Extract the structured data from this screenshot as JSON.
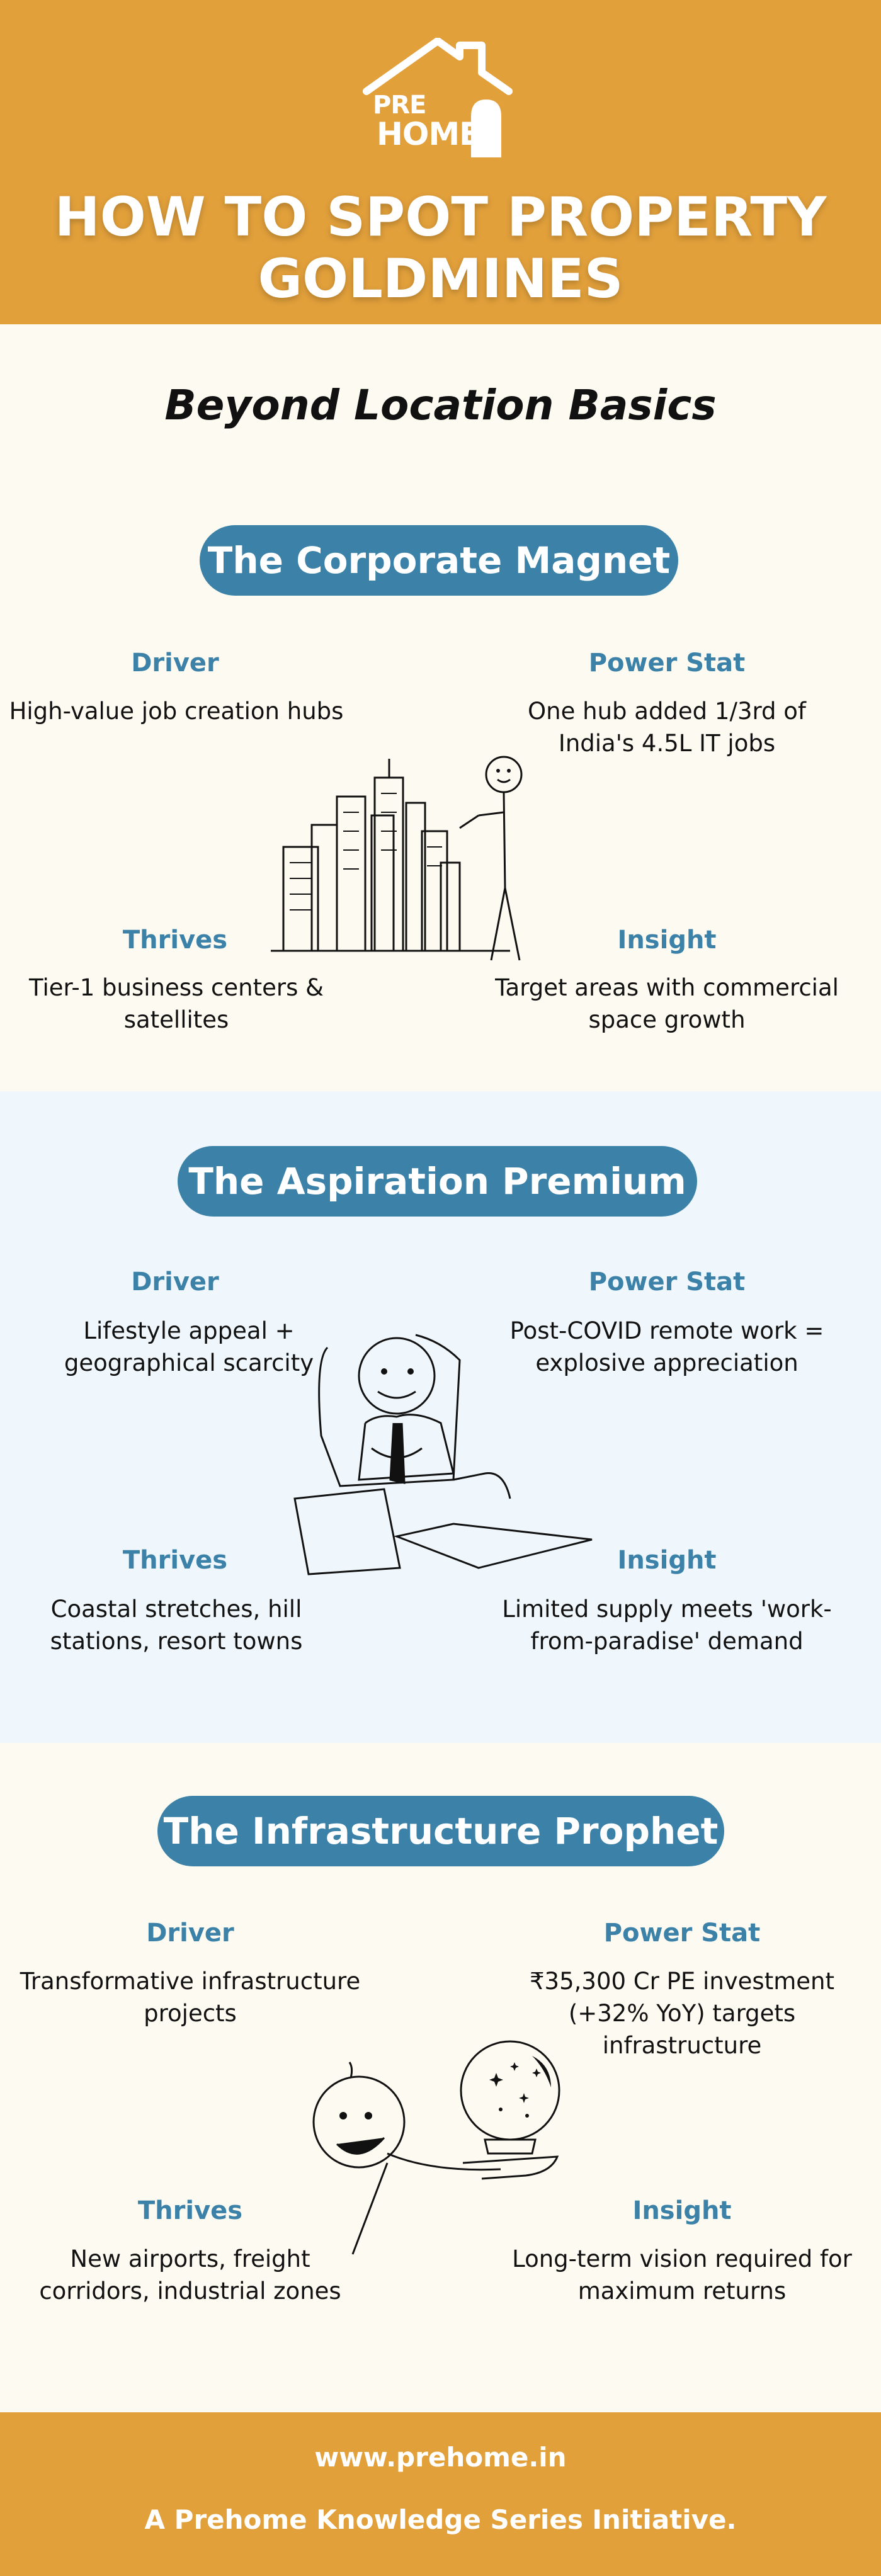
{
  "brand": {
    "logo_top": "PRE",
    "logo_bottom": "HOME"
  },
  "title": "HOW TO SPOT PROPERTY GOLDMINES",
  "subtitle": "Beyond Location Basics",
  "sections": [
    {
      "title": "The Corporate Magnet",
      "driver_label": "Driver",
      "driver": "High-value job creation hubs",
      "power_label": "Power Stat",
      "power": "One hub added 1/3rd of India's 4.5L IT jobs",
      "thrives_label": "Thrives",
      "thrives": "Tier-1 business centers & satellites",
      "insight_label": "Insight",
      "insight": "Target areas with commercial space growth"
    },
    {
      "title": "The Aspiration Premium",
      "driver_label": "Driver",
      "driver": "Lifestyle appeal + geographical scarcity",
      "power_label": "Power Stat",
      "power": "Post-COVID remote work = explosive appreciation",
      "thrives_label": "Thrives",
      "thrives": "Coastal stretches, hill stations, resort towns",
      "insight_label": "Insight",
      "insight": "Limited supply meets 'work-from-paradise' demand"
    },
    {
      "title": "The Infrastructure Prophet",
      "driver_label": "Driver",
      "driver": "Transformative infrastructure projects",
      "power_label": "Power Stat",
      "power": "₹35,300 Cr PE investment (+32% YoY) targets infrastructure",
      "thrives_label": "Thrives",
      "thrives": "New airports, freight corridors, industrial zones",
      "insight_label": "Insight",
      "insight": "Long-term vision required for maximum returns"
    }
  ],
  "footer": {
    "website": "www.prehome.in",
    "tagline": "A Prehome Knowledge Series Initiative."
  },
  "colors": {
    "header_bg": "#e2a03b",
    "accent_blue": "#3b81a8",
    "cream_bg": "#fdfbf1",
    "light_blue_bg": "#eff7fc"
  }
}
